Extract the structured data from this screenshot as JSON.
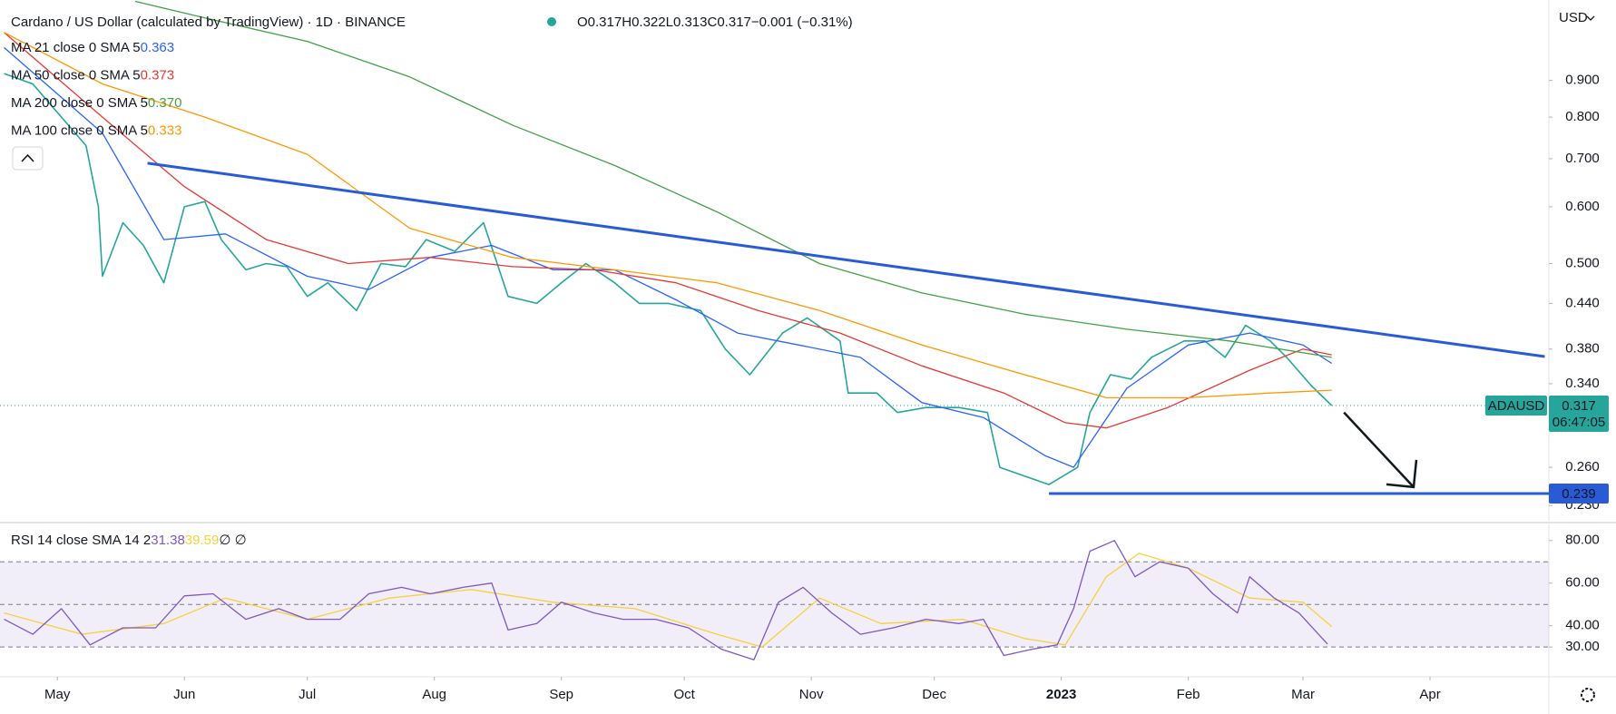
{
  "header": {
    "title": "Cardano / US Dollar (calculated by TradingView) · 1D · BINANCE",
    "ohlc": [
      {
        "label": "O",
        "value": 0.317
      },
      {
        "label": "H",
        "value": 0.322
      },
      {
        "label": "L",
        "value": 0.313
      },
      {
        "label": "C",
        "value": 0.317
      }
    ],
    "change": "−0.001 (−0.31%)",
    "currency": "USD"
  },
  "chart_data": [
    {
      "type": "line",
      "log_scale": true,
      "grid": false,
      "xlim": [
        0,
        378
      ],
      "xticks": [
        {
          "value": 14,
          "label": "May"
        },
        {
          "value": 45,
          "label": "Jun"
        },
        {
          "value": 75,
          "label": "Jul"
        },
        {
          "value": 106,
          "label": "Aug"
        },
        {
          "value": 137,
          "label": "Sep"
        },
        {
          "value": 167,
          "label": "Oct"
        },
        {
          "value": 198,
          "label": "Nov"
        },
        {
          "value": 228,
          "label": "Dec"
        },
        {
          "value": 259,
          "label": "2023"
        },
        {
          "value": 290,
          "label": "Feb"
        },
        {
          "value": 318,
          "label": "Mar"
        },
        {
          "value": 349,
          "label": "Apr"
        }
      ],
      "ylim": [
        0.219,
        1.165
      ],
      "yticks": [
        {
          "value": 0.9,
          "label": "0.900"
        },
        {
          "value": 0.8,
          "label": "0.800"
        },
        {
          "value": 0.7,
          "label": "0.700"
        },
        {
          "value": 0.6,
          "label": "0.600"
        },
        {
          "value": 0.5,
          "label": "0.500"
        },
        {
          "value": 0.44,
          "label": "0.440"
        },
        {
          "value": 0.38,
          "label": "0.380"
        },
        {
          "value": 0.34,
          "label": "0.340"
        },
        {
          "value": 0.26,
          "label": "0.260"
        },
        {
          "value": 0.23,
          "label": "0.230"
        }
      ],
      "series": [
        {
          "name": "ADAUSD",
          "color": "#26a69a",
          "x": [
            1,
            8,
            15,
            21,
            24,
            25,
            30,
            35,
            40,
            45,
            50,
            54,
            60,
            65,
            70,
            75,
            80,
            87,
            93,
            99,
            104,
            111,
            118,
            124,
            131,
            137,
            143,
            150,
            156,
            163,
            171,
            177,
            183,
            191,
            197,
            205,
            207,
            214,
            219,
            226,
            234,
            241,
            244,
            249,
            256,
            263,
            266,
            271,
            276,
            281,
            289,
            294,
            299,
            304,
            310,
            314,
            320,
            325
          ],
          "values": [
            0.92,
            0.89,
            0.8,
            0.73,
            0.6,
            0.48,
            0.57,
            0.53,
            0.47,
            0.6,
            0.61,
            0.54,
            0.49,
            0.5,
            0.495,
            0.45,
            0.47,
            0.43,
            0.5,
            0.495,
            0.54,
            0.52,
            0.57,
            0.45,
            0.44,
            0.47,
            0.5,
            0.47,
            0.44,
            0.44,
            0.43,
            0.38,
            0.35,
            0.4,
            0.42,
            0.39,
            0.33,
            0.33,
            0.31,
            0.315,
            0.315,
            0.31,
            0.26,
            0.254,
            0.246,
            0.26,
            0.31,
            0.35,
            0.345,
            0.37,
            0.39,
            0.39,
            0.37,
            0.41,
            0.39,
            0.37,
            0.338,
            0.317
          ]
        },
        {
          "name": "MA 21 close 0 SMA 5",
          "legend_value": 0.363,
          "color": "#2962ff",
          "x": [
            1,
            25,
            40,
            55,
            75,
            90,
            105,
            120,
            135,
            150,
            165,
            180,
            195,
            210,
            225,
            240,
            255,
            262,
            275,
            290,
            305,
            318,
            325
          ],
          "values": [
            1.0,
            0.76,
            0.54,
            0.55,
            0.48,
            0.46,
            0.51,
            0.53,
            0.49,
            0.49,
            0.445,
            0.4,
            0.385,
            0.37,
            0.32,
            0.305,
            0.27,
            0.26,
            0.335,
            0.385,
            0.4,
            0.385,
            0.363
          ]
        },
        {
          "name": "MA 50 close 0 SMA 5",
          "legend_value": 0.373,
          "color": "#e53935",
          "x": [
            1,
            25,
            45,
            65,
            85,
            105,
            125,
            145,
            165,
            185,
            205,
            225,
            245,
            260,
            270,
            285,
            305,
            318,
            325
          ],
          "values": [
            1.05,
            0.8,
            0.64,
            0.54,
            0.5,
            0.51,
            0.495,
            0.49,
            0.47,
            0.43,
            0.4,
            0.36,
            0.33,
            0.3,
            0.295,
            0.315,
            0.355,
            0.38,
            0.373
          ]
        },
        {
          "name": "MA 200 close 0 SMA 5",
          "legend_value": 0.37,
          "legend_label": "0.370",
          "color": "#43a047",
          "x": [
            33,
            50,
            75,
            100,
            125,
            150,
            175,
            200,
            225,
            250,
            275,
            300,
            325
          ],
          "values": [
            1.16,
            1.1,
            1.02,
            0.91,
            0.78,
            0.685,
            0.59,
            0.5,
            0.455,
            0.425,
            0.405,
            0.39,
            0.37
          ]
        },
        {
          "name": "MA 100 close 0 SMA 5",
          "legend_value": 0.333,
          "color": "#ff9800",
          "x": [
            1,
            25,
            50,
            75,
            100,
            125,
            150,
            175,
            200,
            225,
            250,
            270,
            290,
            310,
            325
          ],
          "values": [
            1.05,
            0.89,
            0.8,
            0.71,
            0.56,
            0.51,
            0.49,
            0.47,
            0.43,
            0.385,
            0.35,
            0.325,
            0.325,
            0.33,
            0.333
          ]
        }
      ],
      "last_price": {
        "symbol": "ADAUSD",
        "value": 0.317,
        "countdown": "06:47:05",
        "color": "#26a69a"
      },
      "trendline": {
        "color": "#2a5bd7",
        "x": [
          36,
          377
        ],
        "values": [
          0.69,
          0.371
        ]
      },
      "support": {
        "color": "#2a5bd7",
        "value": 0.239,
        "x": [
          256,
          378
        ]
      },
      "arrow": {
        "color": "#131722",
        "x": [
          328,
          345
        ],
        "values": [
          0.31,
          0.244
        ]
      }
    },
    {
      "type": "line",
      "grid": false,
      "xlim": [
        0,
        378
      ],
      "ylim": [
        16,
        88
      ],
      "yticks": [
        {
          "value": 80,
          "label": "80.00"
        },
        {
          "value": 60,
          "label": "60.00"
        },
        {
          "value": 40,
          "label": "40.00"
        },
        {
          "value": 30,
          "label": "30.00"
        }
      ],
      "levels": [
        70,
        50,
        30
      ],
      "band": [
        30,
        70
      ],
      "title": "RSI 14 close SMA 14 2",
      "extra": "∅ ∅",
      "series": [
        {
          "name": "RSI",
          "legend_value": 31.38,
          "color": "#7e57c2",
          "x": [
            1,
            8,
            15,
            22,
            30,
            38,
            45,
            52,
            60,
            68,
            75,
            83,
            90,
            98,
            105,
            113,
            120,
            124,
            131,
            137,
            145,
            152,
            160,
            168,
            176,
            184,
            190,
            196,
            203,
            210,
            218,
            226,
            234,
            240,
            245,
            252,
            258,
            262,
            266,
            272,
            277,
            283,
            290,
            296,
            302,
            305,
            311,
            317,
            324
          ],
          "values": [
            43,
            36,
            48,
            31,
            39,
            39,
            54,
            55,
            43,
            48,
            43,
            43,
            55,
            58,
            55,
            58,
            60,
            38,
            41,
            51,
            46,
            43,
            43,
            39,
            29,
            24,
            51,
            58,
            46,
            36,
            39,
            43,
            41,
            43,
            26,
            29,
            31,
            48,
            75,
            80,
            63,
            70,
            67,
            55,
            46,
            63,
            53,
            46,
            31.38
          ]
        },
        {
          "name": "RSI SMA",
          "legend_value": 39.59,
          "color": "#f5d13b",
          "x": [
            1,
            20,
            40,
            55,
            75,
            95,
            115,
            135,
            155,
            175,
            186,
            200,
            215,
            235,
            250,
            260,
            270,
            278,
            290,
            305,
            318,
            325
          ],
          "values": [
            46,
            36,
            41,
            53,
            43,
            53,
            57,
            51,
            48,
            36,
            30,
            53,
            41,
            43,
            34,
            31,
            63,
            74,
            67,
            53,
            51,
            39.59
          ]
        }
      ]
    }
  ]
}
